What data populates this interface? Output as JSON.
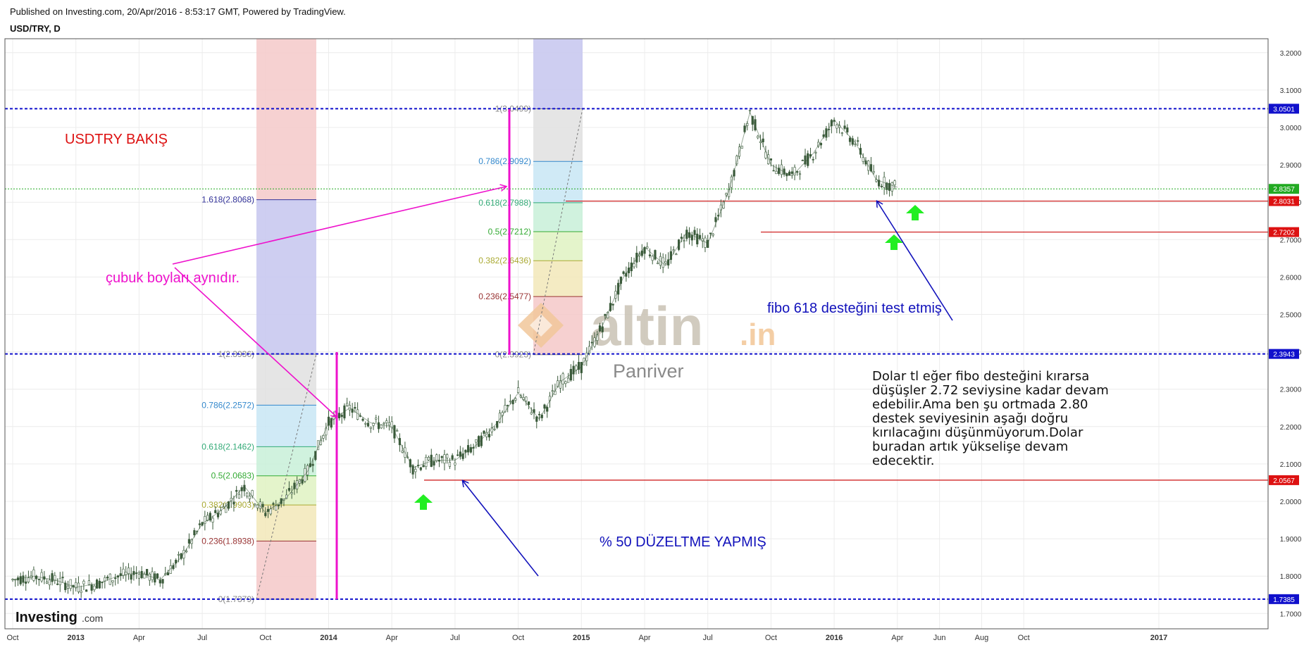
{
  "header": {
    "published": "Published on Investing.com, 20/Apr/2016 - 8:53:17 GMT, Powered by TradingView.",
    "symbol": "USD/TRY, D"
  },
  "logo": {
    "text_main": "Investing",
    "text_suffix": ".com"
  },
  "watermark": {
    "brand": "altin",
    "brand_suffix": ".in",
    "author": "Panriver"
  },
  "colors": {
    "candle": "#3a5a3a",
    "hline_blue": "#1010cc",
    "hline_red": "#cc1111",
    "hline_green": "#22aa22",
    "magenta": "#ee11cc",
    "arrow_green": "#22ee22",
    "annotation_blue": "#1111bb",
    "annotation_red": "#dd1111"
  },
  "chart_data": {
    "type": "line",
    "title": "USD/TRY, D",
    "x_ticks": [
      "Oct",
      "2013",
      "Apr",
      "Jul",
      "Oct",
      "2014",
      "Apr",
      "Jul",
      "Oct",
      "2015",
      "Apr",
      "Jul",
      "Oct",
      "2016",
      "Apr",
      "Jun",
      "Aug",
      "Oct",
      "2017"
    ],
    "y_ticks": [
      "1.7000",
      "1.8000",
      "1.9000",
      "2.0000",
      "2.1000",
      "2.2000",
      "2.3000",
      "2.4000",
      "2.5000",
      "2.6000",
      "2.7000",
      "2.8000",
      "2.9000",
      "3.0000",
      "3.1000",
      "3.2000"
    ],
    "ylim": [
      1.68,
      3.24
    ],
    "series": [
      {
        "x": [
          "2012-10",
          "2012-11",
          "2012-12",
          "2013-01",
          "2013-02",
          "2013-03",
          "2013-04",
          "2013-05",
          "2013-06",
          "2013-07",
          "2013-08",
          "2013-09",
          "2013-10",
          "2013-11",
          "2013-12",
          "2014-01",
          "2014-02",
          "2014-03",
          "2014-04",
          "2014-05",
          "2014-06",
          "2014-07",
          "2014-08",
          "2014-09",
          "2014-10",
          "2014-11",
          "2014-12",
          "2015-01",
          "2015-02",
          "2015-03",
          "2015-04",
          "2015-05",
          "2015-06",
          "2015-07",
          "2015-08",
          "2015-09",
          "2015-10",
          "2015-11",
          "2015-12",
          "2016-01",
          "2016-02",
          "2016-03",
          "2016-04"
        ],
        "values": [
          1.79,
          1.8,
          1.79,
          1.77,
          1.78,
          1.8,
          1.81,
          1.79,
          1.85,
          1.94,
          1.98,
          2.04,
          1.97,
          2.01,
          2.08,
          2.21,
          2.25,
          2.21,
          2.2,
          2.09,
          2.11,
          2.11,
          2.15,
          2.21,
          2.29,
          2.22,
          2.32,
          2.36,
          2.47,
          2.6,
          2.68,
          2.63,
          2.72,
          2.69,
          2.83,
          3.04,
          2.9,
          2.87,
          2.93,
          3.02,
          2.96,
          2.86,
          2.84
        ]
      }
    ],
    "price_tags": [
      {
        "label": "3.0501",
        "value": 3.0501,
        "color": "#1010cc"
      },
      {
        "label": "2.8357",
        "value": 2.8357,
        "color": "#22aa22"
      },
      {
        "label": "2.8031",
        "value": 2.8031,
        "color": "#dd1111"
      },
      {
        "label": "2.7202",
        "value": 2.7202,
        "color": "#dd1111"
      },
      {
        "label": "2.3943",
        "value": 2.3943,
        "color": "#1010cc"
      },
      {
        "label": "2.0567",
        "value": 2.0567,
        "color": "#dd1111"
      },
      {
        "label": "1.7385",
        "value": 1.7385,
        "color": "#1010cc"
      }
    ],
    "fib1": {
      "levels": [
        {
          "label": "0(1.7379)",
          "value": 1.7379,
          "color": "#888888"
        },
        {
          "label": "0.236(1.8938)",
          "value": 1.8938,
          "color": "#993333"
        },
        {
          "label": "0.382(1.9903)",
          "value": 1.9903,
          "color": "#aaaa33"
        },
        {
          "label": "0.5(2.0683)",
          "value": 2.0683,
          "color": "#33aa33"
        },
        {
          "label": "0.618(2.1462)",
          "value": 2.1462,
          "color": "#33aa77"
        },
        {
          "label": "0.786(2.2572)",
          "value": 2.2572,
          "color": "#3388cc"
        },
        {
          "label": "1(2.3936)",
          "value": 2.3936,
          "color": "#888888"
        },
        {
          "label": "1.618(2.8068)",
          "value": 2.8068,
          "color": "#333399"
        }
      ]
    },
    "fib2": {
      "levels": [
        {
          "label": "0(2.3923)",
          "value": 2.3923,
          "color": "#888888"
        },
        {
          "label": "0.236(2.5477)",
          "value": 2.5477,
          "color": "#993333"
        },
        {
          "label": "0.382(2.6436)",
          "value": 2.6436,
          "color": "#aaaa33"
        },
        {
          "label": "0.5(2.7212)",
          "value": 2.7212,
          "color": "#33aa33"
        },
        {
          "label": "0.618(2.7988)",
          "value": 2.7988,
          "color": "#33aa77"
        },
        {
          "label": "0.786(2.9092)",
          "value": 2.9092,
          "color": "#3388cc"
        },
        {
          "label": "1(3.0499)",
          "value": 3.0499,
          "color": "#888888"
        }
      ]
    },
    "annotations": {
      "title": "USDTRY BAKIŞ",
      "bars_note": "çubuk boyları aynıdır.",
      "fibo_test": "fibo 618 desteğini test etmiş",
      "correction": "% 50 DÜZELTME YAPMIŞ",
      "comment": [
        "Dolar tl eğer fibo desteğini kırarsa",
        "düşüşler 2.72 seviysine kadar devam",
        "edebilir.Ama ben şu ortmada 2.80",
        "destek seviyesinin aşağı doğru",
        "kırılacağını düşünmüyorum.Dolar",
        "buradan artık yükselişe devam",
        "edecektir."
      ]
    }
  }
}
